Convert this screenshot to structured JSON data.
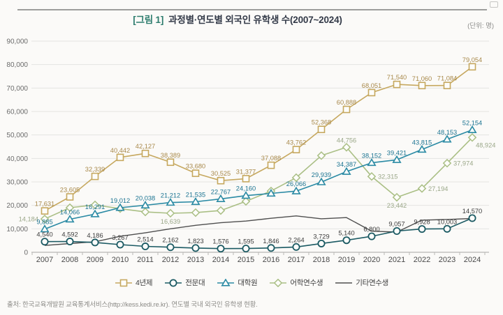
{
  "header": {
    "title_tag": "[그림 1]",
    "title": "과정별·연도별 외국인 유학생 수(2007~2024)",
    "unit": "(단위: 명)"
  },
  "source": "출처: 한국교육개발원 교육통계서비스(http://kess.kedi.re.kr). 연도별 국내 외국인 유학생 현황.",
  "chart_data": {
    "type": "line",
    "title": "과정별·연도별 외국인 유학생 수(2007~2024)",
    "xlabel": "",
    "ylabel": "",
    "unit": "명",
    "x": [
      2007,
      2008,
      2009,
      2010,
      2011,
      2012,
      2013,
      2014,
      2015,
      2016,
      2017,
      2018,
      2019,
      2020,
      2021,
      2022,
      2023,
      2024
    ],
    "ylim": [
      0,
      90000
    ],
    "ytick_step": 10000,
    "ytick_labels": [
      "0",
      "10,000",
      "20,000",
      "30,000",
      "40,000",
      "50,000",
      "60,000",
      "70,000",
      "80,000",
      "90,000"
    ],
    "grid": true,
    "legend_position": "bottom",
    "series": [
      {
        "name": "어학연수생",
        "marker": "diamond",
        "color": "#aabf85",
        "label_color": "#9aa788",
        "values": [
          14184,
          19000,
          20200,
          18600,
          17200,
          16639,
          16900,
          17800,
          21700,
          26100,
          31800,
          41200,
          44756,
          32315,
          23442,
          27194,
          37974,
          48924
        ],
        "labels": [
          "14,184",
          "",
          "",
          "",
          "",
          "16,639",
          "",
          "",
          "",
          "",
          "",
          "",
          "44,756",
          "32,315",
          "23,442",
          "27,194",
          "37,974",
          "48,924"
        ],
        "label_pos": [
          "l",
          "a",
          "a",
          "a",
          "a",
          "b",
          "a",
          "a",
          "a",
          "a",
          "a",
          "a",
          "a",
          "r",
          "b",
          "r",
          "r",
          "br"
        ]
      },
      {
        "name": "4년제",
        "marker": "square",
        "color": "#c6a85f",
        "label_color": "#a8894b",
        "values": [
          17631,
          23605,
          32339,
          40442,
          42127,
          38389,
          33680,
          30525,
          31377,
          37088,
          43762,
          52368,
          60888,
          68051,
          71540,
          71060,
          71084,
          79054
        ],
        "labels": [
          "17,631",
          "23,605",
          "32,339",
          "40,442",
          "42,127",
          "38,389",
          "33,680",
          "30,525",
          "31,377",
          "37,088",
          "43,762",
          "52,368",
          "60,888",
          "68,051",
          "71,540",
          "71,060",
          "71,084",
          "79,054"
        ]
      },
      {
        "name": "기타연수생",
        "marker": "none",
        "color": "#4f4f4f",
        "label_color": "#4f4f4f",
        "values": [
          2900,
          3700,
          4500,
          6800,
          8300,
          10000,
          11500,
          12600,
          13300,
          14500,
          15500,
          14300,
          14800,
          9000,
          8600,
          13700,
          14000,
          14400
        ],
        "labels": [
          "",
          "",
          "",
          "",
          "",
          "",
          "",
          "",
          "",
          "",
          "",
          "",
          "",
          "",
          "",
          "",
          "",
          ""
        ]
      },
      {
        "name": "대학원",
        "marker": "triangle",
        "color": "#2a8aa4",
        "label_color": "#1c7492",
        "values": [
          9885,
          14066,
          16291,
          19012,
          20038,
          21212,
          21535,
          22767,
          24160,
          25100,
          26066,
          29939,
          34387,
          38152,
          39421,
          43815,
          48153,
          52154
        ],
        "labels": [
          "9,885",
          "14,066",
          "16,291",
          "19,012",
          "20,038",
          "21,212",
          "21,535",
          "22,767",
          "24,160",
          "",
          "26,066",
          "29,939",
          "34,387",
          "38,152",
          "39,421",
          "43,815",
          "48,153",
          "52,154"
        ]
      },
      {
        "name": "전문대",
        "marker": "circle",
        "color": "#1b5a63",
        "label_color": "#3c3c3c",
        "values": [
          4540,
          4592,
          4186,
          3267,
          2514,
          2162,
          1823,
          1576,
          1595,
          1846,
          2264,
          3729,
          5140,
          6800,
          9057,
          9928,
          10003,
          14570
        ],
        "labels": [
          "4,540",
          "4,592",
          "4,186",
          "3,267",
          "2,514",
          "2,162",
          "1,823",
          "1,576",
          "1,595",
          "1,846",
          "2,264",
          "3,729",
          "5,140",
          "6,800",
          "9,057",
          "9,928",
          "10,003",
          "14,570"
        ]
      }
    ],
    "legend_order": [
      "4년제",
      "전문대",
      "대학원",
      "어학연수생",
      "기타연수생"
    ]
  }
}
